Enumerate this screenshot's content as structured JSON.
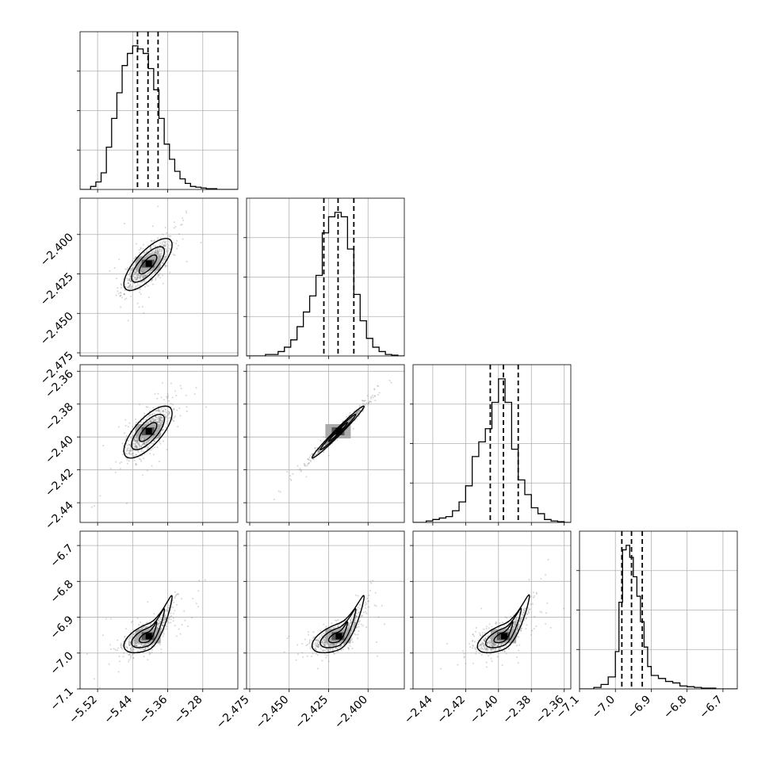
{
  "chart_data": {
    "type": "corner",
    "title": "",
    "grid": true,
    "contour_levels": 3,
    "parameters": [
      {
        "range": [
          -5.56,
          -5.2
        ],
        "ticks": [
          -5.52,
          -5.44,
          -5.36,
          -5.28
        ],
        "tick_labels": [
          "−5.52",
          "−5.44",
          "−5.36",
          "−5.28"
        ],
        "center": -5.405,
        "sigma": 0.025,
        "quantiles": [
          -5.429,
          -5.405,
          -5.382
        ],
        "peak": 1.0
      },
      {
        "range": [
          -2.477,
          -2.377
        ],
        "ticks": [
          -2.475,
          -2.45,
          -2.425,
          -2.4
        ],
        "tick_labels": [
          "−2.475",
          "−2.450",
          "−2.425",
          "−2.400"
        ],
        "center": -2.419,
        "sigma": 0.0075,
        "quantiles": [
          -2.428,
          -2.419,
          -2.409
        ],
        "peak": 0.93
      },
      {
        "range": [
          -2.452,
          -2.356
        ],
        "ticks": [
          -2.44,
          -2.42,
          -2.4,
          -2.38,
          -2.36
        ],
        "tick_labels": [
          "−2.44",
          "−2.42",
          "−2.40",
          "−2.38",
          "−2.36"
        ],
        "center": -2.397,
        "sigma": 0.0072,
        "quantiles": [
          -2.405,
          -2.397,
          -2.388
        ],
        "peak": 0.87
      },
      {
        "range": [
          -7.1,
          -6.66
        ],
        "ticks": [
          -7.1,
          -7.0,
          -6.9,
          -6.8,
          -6.7
        ],
        "tick_labels": [
          "−7.1",
          "−7.0",
          "−6.9",
          "−6.8",
          "−6.7"
        ],
        "y_ticks": [
          -7.1,
          -7.0,
          -6.9,
          -6.8,
          -6.7
        ],
        "y_tick_labels": [
          "−7.1",
          "−7.0",
          "−6.9",
          "−6.8",
          "−6.7"
        ],
        "center": -6.955,
        "sigma": 0.02,
        "quantiles": [
          -6.982,
          -6.955,
          -6.925
        ],
        "peak": 0.95
      }
    ],
    "correlations": {
      "1-0": 0.75,
      "2-0": 0.72,
      "2-1": 0.985,
      "3-0": 0.55,
      "3-1": 0.55,
      "3-2": 0.6
    },
    "marginal_histograms": [
      {
        "edges": [
          -5.56,
          -5.548,
          -5.536,
          -5.524,
          -5.512,
          -5.5,
          -5.488,
          -5.476,
          -5.464,
          -5.452,
          -5.44,
          -5.428,
          -5.416,
          -5.404,
          -5.392,
          -5.38,
          -5.368,
          -5.356,
          -5.344,
          -5.332,
          -5.32,
          -5.308,
          -5.296,
          -5.284,
          -5.272,
          -5.26,
          -5.248,
          -5.236,
          -5.224,
          -5.212,
          -5.2
        ],
        "counts": [
          0,
          0,
          0.02,
          0.05,
          0.11,
          0.28,
          0.47,
          0.64,
          0.82,
          0.9,
          0.95,
          0.93,
          0.9,
          0.8,
          0.66,
          0.47,
          0.3,
          0.2,
          0.12,
          0.07,
          0.04,
          0.02,
          0.015,
          0.01,
          0.005,
          0.005,
          0,
          0,
          0,
          0
        ]
      },
      {
        "edges": [
          -2.477,
          -2.473,
          -2.469,
          -2.465,
          -2.461,
          -2.457,
          -2.453,
          -2.449,
          -2.445,
          -2.441,
          -2.437,
          -2.433,
          -2.429,
          -2.425,
          -2.421,
          -2.417,
          -2.413,
          -2.409,
          -2.405,
          -2.401,
          -2.397,
          -2.393,
          -2.389,
          -2.385,
          -2.381,
          -2.377
        ],
        "counts": [
          0,
          0,
          0,
          0.01,
          0.01,
          0.03,
          0.06,
          0.11,
          0.2,
          0.3,
          0.41,
          0.55,
          0.84,
          0.95,
          0.98,
          0.95,
          0.73,
          0.42,
          0.24,
          0.12,
          0.06,
          0.03,
          0.01,
          0.005,
          0
        ]
      },
      {
        "edges": [
          -2.452,
          -2.448,
          -2.444,
          -2.44,
          -2.436,
          -2.432,
          -2.428,
          -2.424,
          -2.42,
          -2.416,
          -2.412,
          -2.408,
          -2.404,
          -2.4,
          -2.396,
          -2.392,
          -2.388,
          -2.384,
          -2.38,
          -2.376,
          -2.372,
          -2.368,
          -2.364,
          -2.36,
          -2.356
        ],
        "counts": [
          0,
          0,
          0.01,
          0.02,
          0.03,
          0.04,
          0.08,
          0.14,
          0.25,
          0.45,
          0.55,
          0.64,
          0.82,
          0.98,
          0.82,
          0.5,
          0.29,
          0.19,
          0.1,
          0.06,
          0.02,
          0.01,
          0.005,
          0
        ]
      },
      {
        "edges": [
          -7.1,
          -7.08,
          -7.06,
          -7.04,
          -7.02,
          -7.0,
          -6.99,
          -6.98,
          -6.97,
          -6.96,
          -6.95,
          -6.94,
          -6.93,
          -6.92,
          -6.91,
          -6.9,
          -6.88,
          -6.86,
          -6.84,
          -6.82,
          -6.8,
          -6.78,
          -6.76,
          -6.74,
          -6.72,
          -6.7,
          -6.68,
          -6.66
        ],
        "counts": [
          0,
          0,
          0.01,
          0.03,
          0.08,
          0.25,
          0.58,
          0.93,
          0.96,
          0.88,
          0.75,
          0.62,
          0.45,
          0.28,
          0.15,
          0.09,
          0.07,
          0.05,
          0.04,
          0.02,
          0.015,
          0.01,
          0.005,
          0.005,
          0,
          0,
          0
        ]
      }
    ]
  }
}
